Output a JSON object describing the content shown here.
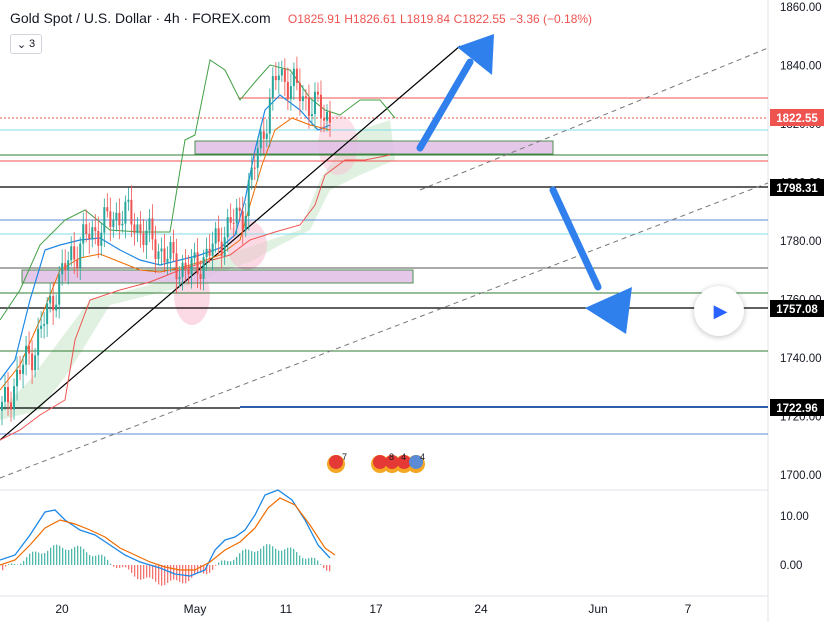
{
  "header": {
    "symbol": "Gold Spot / U.S. Dollar · 4h · FOREX.com",
    "open_key": "O",
    "open": "1825.91",
    "high_key": "H",
    "high": "1826.61",
    "low_key": "L",
    "low": "1819.84",
    "close_key": "C",
    "close": "1822.55",
    "change": "−3.36 (−0.18%)",
    "indicator_count": "3"
  },
  "colors": {
    "up": "#26a69a",
    "down": "#ef5350",
    "accent": "#2962ff",
    "arrow": "#2f80ed",
    "zone": "#e1bee7",
    "cloud": "#c8e6c9"
  },
  "chart_data": [
    {
      "type": "line",
      "title": "",
      "series": [
        {
          "values": [
            1722,
            1735,
            1745,
            1762,
            1775,
            1782,
            1786,
            1790,
            1784,
            1778,
            1772,
            1770,
            1776,
            1784,
            1790,
            1815,
            1838,
            1832,
            1826,
            1822.55
          ]
        }
      ],
      "yticks": [
        "1860.00",
        "1840.00",
        "1820.00",
        "1800.00",
        "1780.00",
        "1760.00",
        "1740.00",
        "1720.00",
        "1700.00"
      ],
      "ylim": [
        1690,
        1860
      ],
      "xticks": [
        "20",
        "May",
        "11",
        "17",
        "24",
        "Jun",
        "7"
      ],
      "last_price": "1822.55",
      "levels": [
        "1798.31",
        "1757.08",
        "1722.96"
      ],
      "grid": true
    },
    {
      "type": "bar",
      "title": "",
      "yticks": [
        "10.00",
        "0.00"
      ]
    }
  ],
  "events": [
    "7",
    "8",
    "4",
    "4"
  ],
  "play_icon": "play-icon"
}
